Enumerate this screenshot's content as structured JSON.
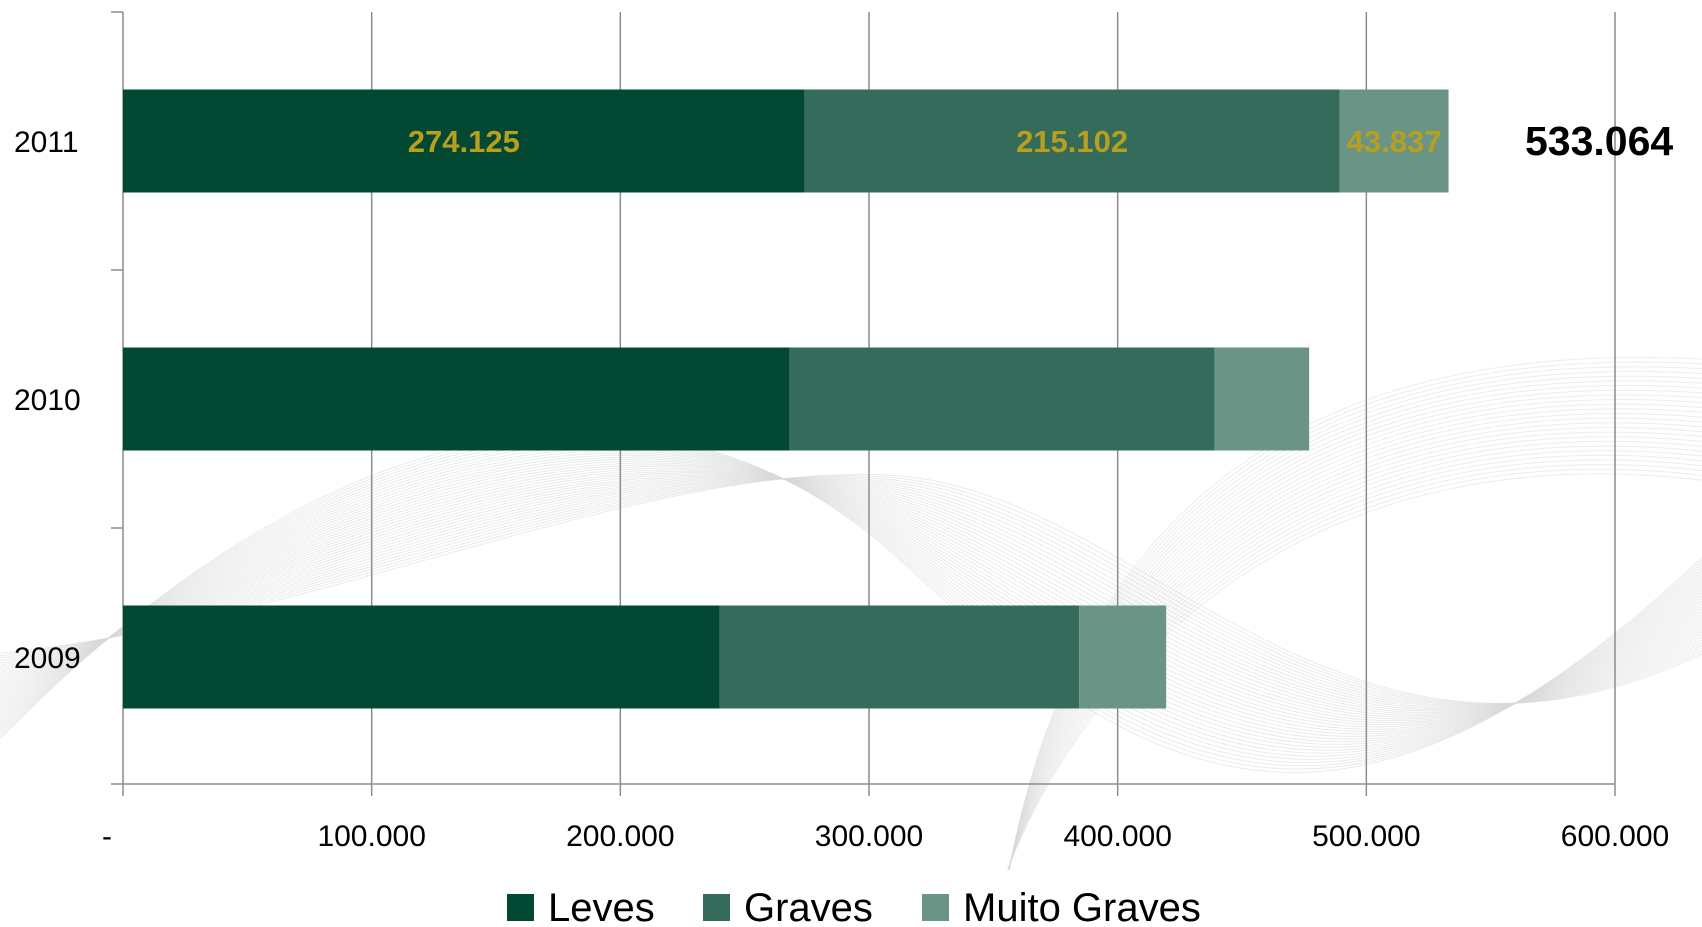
{
  "chart_data": {
    "type": "bar",
    "orientation": "horizontal",
    "stacked": true,
    "categories": [
      "2011",
      "2010",
      "2009"
    ],
    "series": [
      {
        "name": "Leves",
        "values": [
          274125,
          268000,
          240000
        ],
        "color": "#034832"
      },
      {
        "name": "Graves",
        "values": [
          215102,
          171000,
          144500
        ],
        "color": "#346b5b"
      },
      {
        "name": "Muito Graves",
        "values": [
          43837,
          38000,
          35000
        ],
        "color": "#6a9486"
      }
    ],
    "data_labels": {
      "category": "2011",
      "values": [
        "274.125",
        "215.102",
        "43.837"
      ],
      "color": "#b8a01e"
    },
    "total_label": {
      "category": "2011",
      "text": "533.064"
    },
    "x_ticks": [
      {
        "value": 0,
        "label": "-"
      },
      {
        "value": 100000,
        "label": "100.000"
      },
      {
        "value": 200000,
        "label": "200.000"
      },
      {
        "value": 300000,
        "label": "300.000"
      },
      {
        "value": 400000,
        "label": "400.000"
      },
      {
        "value": 500000,
        "label": "500.000"
      },
      {
        "value": 600000,
        "label": "600.000"
      }
    ],
    "xlim": [
      0,
      600000
    ],
    "grid": true,
    "legend": "bottom",
    "title": "",
    "xlabel": "",
    "ylabel": ""
  }
}
